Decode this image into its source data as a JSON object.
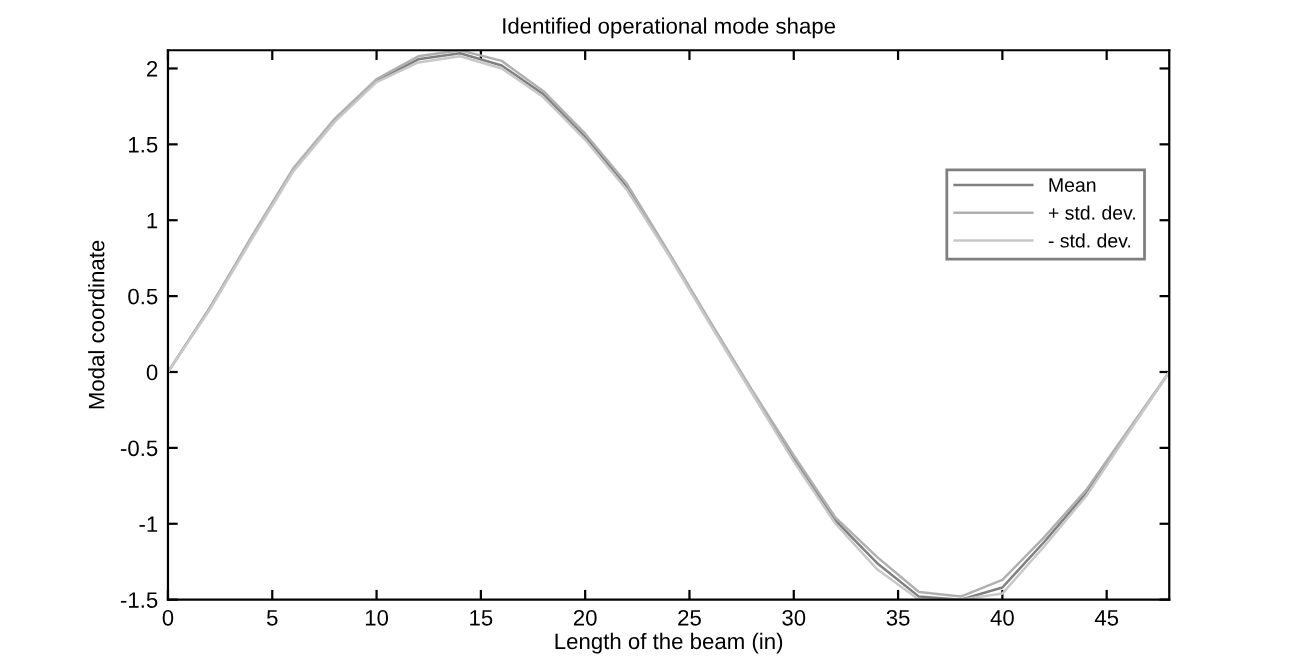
{
  "chart_data": {
    "type": "line",
    "title": "Identified operational mode shape",
    "xlabel": "Length of the beam (in)",
    "ylabel": "Modal coordinate",
    "x": [
      0,
      2,
      4,
      6,
      8,
      10,
      12,
      14,
      16,
      18,
      20,
      22,
      24,
      26,
      28,
      30,
      32,
      34,
      36,
      38,
      40,
      42,
      44,
      46,
      48
    ],
    "series": [
      {
        "name": "Mean",
        "color": "#808080",
        "values": [
          0,
          0.42,
          0.88,
          1.33,
          1.66,
          1.92,
          2.06,
          2.1,
          2.02,
          1.83,
          1.55,
          1.22,
          0.78,
          0.32,
          -0.13,
          -0.57,
          -0.98,
          -1.26,
          -1.48,
          -1.5,
          -1.42,
          -1.12,
          -0.8,
          -0.4,
          0
        ]
      },
      {
        "name": "+ std. dev.",
        "color": "#b0b0b0",
        "values": [
          0,
          0.42,
          0.89,
          1.34,
          1.67,
          1.93,
          2.08,
          2.12,
          2.05,
          1.85,
          1.57,
          1.24,
          0.79,
          0.33,
          -0.12,
          -0.55,
          -0.96,
          -1.22,
          -1.45,
          -1.48,
          -1.37,
          -1.09,
          -0.78,
          -0.39,
          0
        ]
      },
      {
        "name": "- std. dev.",
        "color": "#c8c8c8",
        "values": [
          0,
          0.41,
          0.87,
          1.32,
          1.65,
          1.91,
          2.04,
          2.08,
          2.0,
          1.81,
          1.53,
          1.2,
          0.77,
          0.31,
          -0.14,
          -0.59,
          -1.0,
          -1.3,
          -1.5,
          -1.5,
          -1.46,
          -1.15,
          -0.82,
          -0.41,
          0
        ]
      }
    ],
    "xlim": [
      0,
      48
    ],
    "ylim": [
      -1.5,
      2.12
    ],
    "xticks": [
      0,
      5,
      10,
      15,
      20,
      25,
      30,
      35,
      40,
      45
    ],
    "yticks": [
      -1.5,
      -1,
      -0.5,
      0,
      0.5,
      1,
      1.5,
      2
    ],
    "grid": false,
    "legend": "top right",
    "marker": "none",
    "line_style": "solid"
  }
}
